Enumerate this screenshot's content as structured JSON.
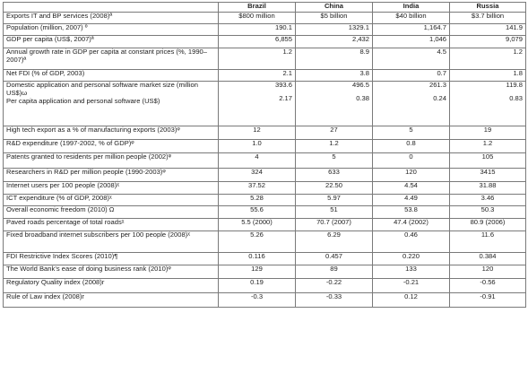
{
  "header": {
    "blank": "",
    "countries": [
      "Brazil",
      "China",
      "India",
      "Russia"
    ]
  },
  "rows": [
    {
      "label": "Exports IT and BP services (2008)ª",
      "values": [
        "$800 million",
        "$5 billion",
        "$40 billion",
        "$3.7 billion"
      ],
      "align": "center",
      "h": 13
    },
    {
      "label": "Population (million, 2007) º",
      "values": [
        "190.1",
        "1329.1",
        "1,164.7",
        "141.9"
      ],
      "align": "right",
      "h": 13
    },
    {
      "label": "GDP per capita (US$, 2007)ª",
      "values": [
        "6,855",
        "2,432",
        "1,046",
        "9,079"
      ],
      "align": "right",
      "h": 14
    },
    {
      "label": "Annual growth rate in GDP per capita at constant prices (%, 1990–2007)ª",
      "values": [
        "1.2",
        "8.9",
        "4.5",
        "1.2"
      ],
      "align": "right",
      "h": 24
    },
    {
      "label": "Net FDI (% of GDP, 2003)",
      "values": [
        "2.1",
        "3.8",
        "0.7",
        "1.8"
      ],
      "align": "right",
      "h": 13
    },
    {
      "label": "Domestic application and personal software market size (million US$)ω",
      "label2": "Per capita application and personal software (US$)",
      "values": [
        "393.6",
        "496.5",
        "261.3",
        "119.8"
      ],
      "values2": [
        "2.17",
        "0.38",
        "0.24",
        "0.83"
      ],
      "align": "right",
      "h": 50
    },
    {
      "label": "High tech export as a % of manufacturing exports (2003)ᵠ",
      "values": [
        "12",
        "27",
        "5",
        "19"
      ],
      "align": "center",
      "h": 15
    },
    {
      "label": "R&D expenditure (1997-2002, % of GDP)ᵠ",
      "values": [
        "1.0",
        "1.2",
        "0.8",
        "1.2"
      ],
      "align": "center",
      "h": 15
    },
    {
      "label": "Patents granted to residents per million people (2002)ᵠ",
      "values": [
        "4",
        "5",
        "0",
        "105"
      ],
      "align": "center",
      "h": 17
    },
    {
      "label": "Researchers in R&D per million people  (1990-2003)ᵠ",
      "values": [
        "324",
        "633",
        "120",
        "3415"
      ],
      "align": "center",
      "h": 15
    },
    {
      "label": "Internet users per 100 people (2008)ᵡ",
      "values": [
        "37.52",
        "22.50",
        "4.54",
        "31.88"
      ],
      "align": "center",
      "h": 14
    },
    {
      "label": "ICT expenditure (% of GDP, 2008)ᵡ",
      "values": [
        "5.28",
        "5.97",
        "4.49",
        "3.46"
      ],
      "align": "center",
      "h": 13
    },
    {
      "label": "Overall economic freedom (2010) Ω",
      "values": [
        "55.6",
        "51",
        "53.8",
        "50.3"
      ],
      "align": "center",
      "h": 14
    },
    {
      "label": "Paved roads percentage of total roadsᵡ",
      "values": [
        "5.5 (2000)",
        "70.7 (2007)",
        "47.4 (2002)",
        "80.9 (2006)"
      ],
      "align": "center",
      "h": 14
    },
    {
      "label": "Fixed broadband internet subscribers per 100 people (2008)ᵡ",
      "values": [
        "5.26",
        "6.29",
        "0.46",
        "11.6"
      ],
      "align": "center",
      "h": 24
    },
    {
      "label": "FDI Restrictive Index Scores (2010)¶",
      "values": [
        "0.116",
        "0.457",
        "0.220",
        "0.384"
      ],
      "align": "center",
      "h": 14
    },
    {
      "label": "The World Bank’s ease of doing business rank (2010)ᵠ",
      "values": [
        "129",
        "89",
        "133",
        "120"
      ],
      "align": "center",
      "h": 15
    },
    {
      "label": "Regulatory Quality index (2008)ᴦ",
      "values": [
        "0.19",
        "-0.22",
        "-0.21",
        "-0.56"
      ],
      "align": "center",
      "h": 16
    },
    {
      "label": "Rule of Law index (2008)ᴦ",
      "values": [
        "-0.3",
        "-0.33",
        "0.12",
        "-0.91"
      ],
      "align": "center",
      "h": 16
    }
  ]
}
